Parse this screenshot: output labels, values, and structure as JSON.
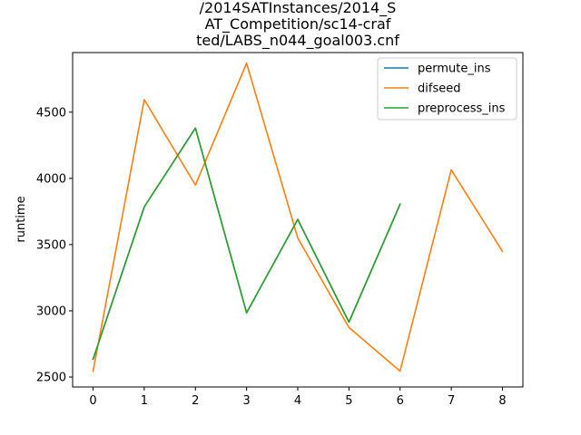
{
  "chart_data": {
    "type": "line",
    "title_lines": [
      "/2014SATInstances/2014_S",
      "AT_Competition/sc14-craf",
      "ted/LABS_n044_goal003.cnf"
    ],
    "xlabel": "",
    "ylabel": "runtime",
    "x_ticks": [
      0,
      1,
      2,
      3,
      4,
      5,
      6,
      7,
      8
    ],
    "y_ticks": [
      2500,
      3000,
      3500,
      4000,
      4500
    ],
    "xlim": [
      -0.4,
      8.4
    ],
    "ylim": [
      2425,
      4950
    ],
    "grid": false,
    "legend_position": "top-right",
    "series": [
      {
        "name": "permute_ins",
        "color": "#1f77b4",
        "x": [
          0,
          1,
          2,
          3,
          4,
          5,
          6
        ],
        "values": [
          2635,
          3785,
          4380,
          2985,
          3690,
          2915,
          3805
        ]
      },
      {
        "name": "difseed",
        "color": "#ff7f0e",
        "x": [
          0,
          1,
          2,
          3,
          4,
          5,
          6,
          7,
          8
        ],
        "values": [
          2545,
          4595,
          3950,
          4870,
          3550,
          2875,
          2545,
          4065,
          3450
        ]
      },
      {
        "name": "preprocess_ins",
        "color": "#2ca02c",
        "x": [
          0,
          1,
          2,
          3,
          4,
          5,
          6
        ],
        "values": [
          2635,
          3785,
          4380,
          2985,
          3690,
          2915,
          3805
        ]
      }
    ]
  }
}
